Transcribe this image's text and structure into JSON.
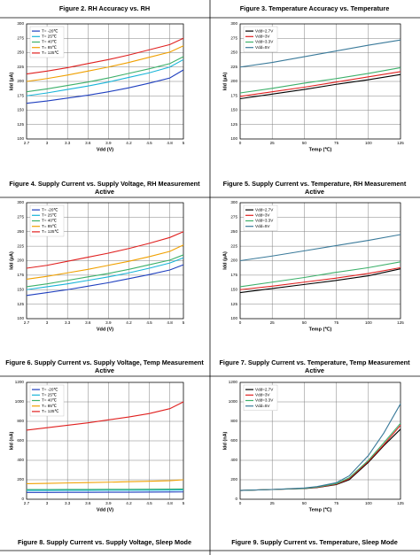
{
  "captions": [
    "Figure 2. RH Accuracy vs. RH",
    "Figure 3. Temperature Accuracy vs. Temperature"
  ],
  "chart_data": [
    {
      "type": "line",
      "title": "Figure 4. Supply Current vs. Supply Voltage, RH Measurement Active",
      "x_label": "Vdd (V)",
      "y_label": "Idd (µA)",
      "x": [
        2.7,
        3,
        3.3,
        3.6,
        3.9,
        4.2,
        4.5,
        4.8,
        5
      ],
      "xlim": [
        2.7,
        5
      ],
      "xticks": [
        2.7,
        3,
        3.3,
        3.6,
        3.9,
        4.2,
        4.5,
        4.8,
        5
      ],
      "ylim": [
        100,
        300
      ],
      "yticks": [
        100,
        125,
        150,
        175,
        200,
        225,
        250,
        275,
        300
      ],
      "grid": true,
      "legend": "upper left",
      "series": [
        {
          "name": "T= -20℃",
          "color": "#1f3fbf",
          "values": [
            162,
            166,
            171,
            176,
            182,
            189,
            197,
            206,
            220
          ]
        },
        {
          "name": "T= 25℃",
          "color": "#18b4d8",
          "values": [
            175,
            180,
            186,
            192,
            199,
            207,
            215,
            225,
            238
          ]
        },
        {
          "name": "T= 40℃",
          "color": "#3cb06a",
          "values": [
            182,
            187,
            193,
            199,
            206,
            214,
            222,
            231,
            243
          ]
        },
        {
          "name": "T= 85℃",
          "color": "#f0a000",
          "values": [
            200,
            205,
            211,
            218,
            225,
            233,
            242,
            251,
            262
          ]
        },
        {
          "name": "T= 125℃",
          "color": "#e0201f",
          "values": [
            213,
            218,
            224,
            231,
            238,
            246,
            255,
            264,
            275
          ]
        }
      ]
    },
    {
      "type": "line",
      "title": "Figure 5. Supply Current vs. Temperature, RH Measurement Active",
      "x_label": "Temp (℃)",
      "y_label": "Idd (µA)",
      "x": [
        0,
        25,
        50,
        75,
        100,
        125
      ],
      "xlim": [
        0,
        125
      ],
      "xticks": [
        0,
        25,
        50,
        75,
        100,
        125
      ],
      "ylim": [
        100,
        300
      ],
      "yticks": [
        100,
        125,
        150,
        175,
        200,
        225,
        250,
        275,
        300
      ],
      "grid": true,
      "legend": "upper left",
      "series": [
        {
          "name": "Vdd=2.7V",
          "color": "#000000",
          "values": [
            170,
            178,
            186,
            195,
            203,
            212
          ]
        },
        {
          "name": "Vdd=3V",
          "color": "#e0201f",
          "values": [
            174,
            182,
            190,
            199,
            208,
            217
          ]
        },
        {
          "name": "Vdd=3.3V",
          "color": "#3cb06a",
          "values": [
            180,
            188,
            197,
            205,
            214,
            224
          ]
        },
        {
          "name": "Vdd=5V",
          "color": "#3a7a9a",
          "values": [
            225,
            233,
            243,
            253,
            263,
            272
          ]
        }
      ]
    },
    {
      "type": "line",
      "title": "Figure 6. Supply Current vs. Supply Voltage, Temp Measurement Active",
      "x_label": "Vdd (V)",
      "y_label": "Idd (µA)",
      "x": [
        2.7,
        3,
        3.3,
        3.6,
        3.9,
        4.2,
        4.5,
        4.8,
        5
      ],
      "xlim": [
        2.7,
        5
      ],
      "xticks": [
        2.7,
        3,
        3.3,
        3.6,
        3.9,
        4.2,
        4.5,
        4.8,
        5
      ],
      "ylim": [
        100,
        300
      ],
      "yticks": [
        100,
        125,
        150,
        175,
        200,
        225,
        250,
        275,
        300
      ],
      "grid": true,
      "legend": "upper left",
      "series": [
        {
          "name": "T= -20℃",
          "color": "#1f3fbf",
          "values": [
            140,
            145,
            150,
            156,
            162,
            169,
            176,
            184,
            193
          ]
        },
        {
          "name": "T= 25℃",
          "color": "#18b4d8",
          "values": [
            150,
            155,
            160,
            166,
            172,
            179,
            187,
            196,
            205
          ]
        },
        {
          "name": "T= 40℃",
          "color": "#3cb06a",
          "values": [
            155,
            160,
            166,
            172,
            178,
            185,
            193,
            201,
            210
          ]
        },
        {
          "name": "T= 85℃",
          "color": "#f0a000",
          "values": [
            168,
            173,
            179,
            185,
            192,
            199,
            207,
            216,
            227
          ]
        },
        {
          "name": "T= 125℃",
          "color": "#e0201f",
          "values": [
            187,
            192,
            199,
            206,
            213,
            221,
            230,
            240,
            250
          ]
        }
      ]
    },
    {
      "type": "line",
      "title": "Figure 7. Supply Current vs. Temperature, Temp Measurement Active",
      "x_label": "Temp (℃)",
      "y_label": "Idd (µA)",
      "x": [
        0,
        25,
        50,
        75,
        100,
        125
      ],
      "xlim": [
        0,
        125
      ],
      "xticks": [
        0,
        25,
        50,
        75,
        100,
        125
      ],
      "ylim": [
        100,
        300
      ],
      "yticks": [
        100,
        125,
        150,
        175,
        200,
        225,
        250,
        275,
        300
      ],
      "grid": true,
      "legend": "upper left",
      "series": [
        {
          "name": "Vdd=2.7V",
          "color": "#000000",
          "values": [
            145,
            152,
            159,
            166,
            174,
            186
          ]
        },
        {
          "name": "Vdd=3V",
          "color": "#e0201f",
          "values": [
            150,
            156,
            163,
            170,
            178,
            188
          ]
        },
        {
          "name": "Vdd=3.3V",
          "color": "#3cb06a",
          "values": [
            155,
            163,
            171,
            180,
            188,
            198
          ]
        },
        {
          "name": "Vdd=5V",
          "color": "#3a7a9a",
          "values": [
            200,
            208,
            217,
            226,
            235,
            245
          ]
        }
      ]
    },
    {
      "type": "line",
      "title": "Figure 8. Supply Current vs. Supply Voltage, Sleep Mode",
      "x_label": "Vdd (V)",
      "y_label": "Idd (nA)",
      "x": [
        2.7,
        3,
        3.3,
        3.6,
        3.9,
        4.2,
        4.5,
        4.8,
        5
      ],
      "xlim": [
        2.7,
        5
      ],
      "xticks": [
        2.7,
        3,
        3.3,
        3.6,
        3.9,
        4.2,
        4.5,
        4.8,
        5
      ],
      "ylim": [
        0,
        1200
      ],
      "yticks": [
        0,
        200,
        400,
        600,
        800,
        1000,
        1200
      ],
      "grid": true,
      "legend": "upper left",
      "series": [
        {
          "name": "T= -20℃",
          "color": "#1f3fbf",
          "values": [
            70,
            70,
            71,
            71,
            72,
            72,
            73,
            74,
            75
          ]
        },
        {
          "name": "T= 25℃",
          "color": "#18b4d8",
          "values": [
            90,
            90,
            91,
            91,
            92,
            92,
            93,
            94,
            95
          ]
        },
        {
          "name": "T= 40℃",
          "color": "#3cb06a",
          "values": [
            100,
            100,
            101,
            101,
            102,
            102,
            103,
            104,
            105
          ]
        },
        {
          "name": "T= 85℃",
          "color": "#f0a000",
          "values": [
            160,
            163,
            167,
            171,
            175,
            180,
            185,
            190,
            200
          ]
        },
        {
          "name": "T= 125℃",
          "color": "#e0201f",
          "values": [
            710,
            735,
            760,
            785,
            815,
            845,
            880,
            930,
            1000
          ]
        }
      ]
    },
    {
      "type": "line",
      "title": "Figure 9. Supply Current vs. Temperature, Sleep Mode",
      "x_label": "Temp (℃)",
      "y_label": "Idd (nA)",
      "x": [
        0,
        25,
        50,
        60,
        75,
        85,
        100,
        112,
        125
      ],
      "xlim": [
        0,
        125
      ],
      "xticks": [
        0,
        25,
        50,
        75,
        100,
        125
      ],
      "ylim": [
        0,
        1200
      ],
      "yticks": [
        0,
        200,
        400,
        600,
        800,
        1000,
        1200
      ],
      "grid": true,
      "legend": "upper left",
      "series": [
        {
          "name": "Vdd=2.7V",
          "color": "#000000",
          "values": [
            90,
            100,
            110,
            120,
            150,
            200,
            380,
            550,
            720
          ]
        },
        {
          "name": "Vdd=3V",
          "color": "#e0201f",
          "values": [
            90,
            100,
            112,
            122,
            155,
            210,
            390,
            560,
            760
          ]
        },
        {
          "name": "Vdd=3.3V",
          "color": "#3cb06a",
          "values": [
            90,
            100,
            112,
            125,
            160,
            220,
            400,
            580,
            780
          ]
        },
        {
          "name": "Vdd=5V",
          "color": "#3a7a9a",
          "values": [
            90,
            100,
            115,
            130,
            170,
            240,
            450,
            680,
            980
          ]
        }
      ]
    }
  ]
}
